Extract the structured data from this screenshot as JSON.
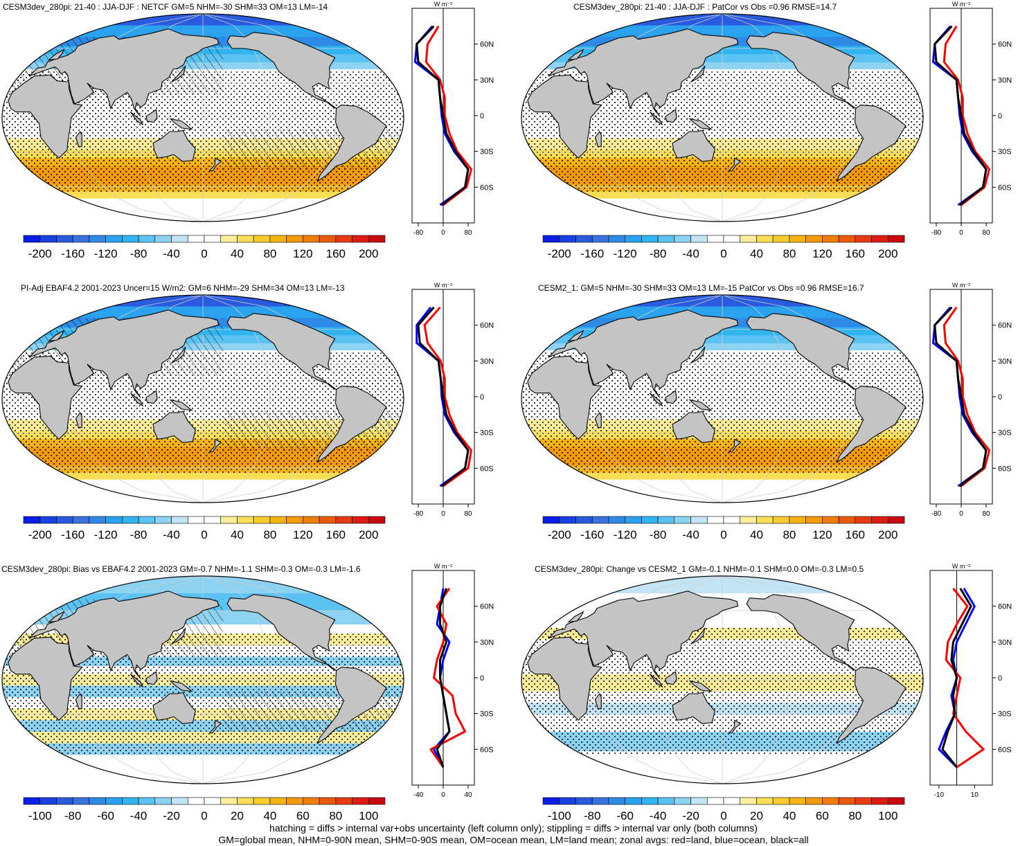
{
  "panels": [
    {
      "title": "CESM3dev_280pi: 21-40 : JJA-DJF : NETCF GM=5 NHM=-30 SHM=33 OM=13 LM=-14",
      "kind": "abs",
      "hatch": true
    },
    {
      "title": "CESM3dev_280pi: 21-40 : JJA-DJF : PatCor vs Obs =0.96 RMSE=14.7",
      "kind": "abs",
      "hatch": false
    },
    {
      "title": "PI-Adj EBAF4.2 2001-2023 Uncer=15 W/m2: GM=6 NHM=-29 SHM=34 OM=13 LM=-13",
      "kind": "abs",
      "hatch": true
    },
    {
      "title": "CESM2_1: GM=5 NHM=-30 SHM=33 OM=13 LM=-15 PatCor vs Obs =0.96 RMSE=16.7",
      "kind": "abs",
      "hatch": false
    },
    {
      "title": "CESM3dev_280pi: Bias vs EBAF4.2 2001-2023 GM=-0.7 NHM=-1.1 SHM=-0.3 OM=-0.3 LM=-1.6",
      "kind": "bias",
      "hatch": true
    },
    {
      "title": "CESM3dev_280pi: Change vs CESM2_1 GM=-0.1 NHM=-0.1 SHM=0.0 OM=-0.3 LM=0.5",
      "kind": "change",
      "hatch": false
    }
  ],
  "zonal": {
    "unit_label": "W m⁻²",
    "lat_labels": [
      "60N",
      "30N",
      "0",
      "30S",
      "60S"
    ],
    "xticks_abs": [
      "-80",
      "0",
      "80"
    ],
    "xticks_bias": [
      "-40",
      "0",
      "40"
    ],
    "xticks_change": [
      "-10",
      "10"
    ]
  },
  "colorbars": {
    "abs_labels": [
      "-200",
      "-160",
      "-120",
      "-80",
      "-40",
      "0",
      "40",
      "80",
      "120",
      "160",
      "200"
    ],
    "diff_labels": [
      "-100",
      "-80",
      "-60",
      "-40",
      "-20",
      "0",
      "20",
      "40",
      "60",
      "80",
      "100"
    ],
    "colors": [
      "#0b1ee8",
      "#1940e0",
      "#2a5bde",
      "#3a72e0",
      "#2f8ae6",
      "#2aa2ee",
      "#32b4f0",
      "#5cc2f2",
      "#8ed2f2",
      "#c2e4f4",
      "#ffffff",
      "#ffffff",
      "#fbee9a",
      "#f8df55",
      "#f8cc2a",
      "#f6b414",
      "#f39a0c",
      "#ef7e0a",
      "#eb5a0c",
      "#e63a12",
      "#de1c16",
      "#c80a10"
    ]
  },
  "footer": {
    "line1": "hatching = diffs > internal var+obs uncertainty (left column only); stippling = diffs > internal var only (both columns)",
    "line2": "GM=global mean, NHM=0-90N mean, SHM=0-90S mean, OM=ocean mean, LM=land mean; zonal avgs: red=land, blue=ocean, black=all"
  },
  "colors": {
    "land": "#c4c4c4",
    "land_line": "#ffffff",
    "grid": "#cfcfcf",
    "zonal_land": "#ff0000",
    "zonal_ocean": "#0000ff",
    "zonal_all": "#000000"
  },
  "chart_data": [
    {
      "type": "heatmap",
      "panel": "a",
      "projection": "Robinson",
      "units": "W m-2",
      "zonal_mean_lat": [
        75,
        60,
        45,
        30,
        15,
        0,
        -15,
        -30,
        -45,
        -60,
        -75
      ],
      "zonal_mean_all": [
        -30,
        -85,
        -80,
        -15,
        -10,
        0,
        10,
        40,
        80,
        70,
        -5
      ],
      "zonal_mean_land": [
        -15,
        -50,
        -55,
        -10,
        5,
        5,
        20,
        45,
        90,
        75,
        0
      ],
      "zonal_mean_ocean": [
        -35,
        -85,
        -90,
        -15,
        -10,
        -5,
        5,
        35,
        80,
        70,
        -10
      ],
      "xlim": [
        -100,
        100
      ],
      "ylim": [
        -90,
        90
      ]
    },
    {
      "type": "heatmap",
      "panel": "b",
      "projection": "Robinson",
      "units": "W m-2",
      "zonal_mean_lat": [
        75,
        60,
        45,
        30,
        15,
        0,
        -15,
        -30,
        -45,
        -60,
        -75
      ],
      "zonal_mean_all": [
        -30,
        -85,
        -80,
        -15,
        -10,
        0,
        10,
        40,
        80,
        70,
        -5
      ],
      "zonal_mean_land": [
        -15,
        -50,
        -55,
        -10,
        5,
        5,
        20,
        45,
        90,
        75,
        0
      ],
      "zonal_mean_ocean": [
        -35,
        -85,
        -90,
        -15,
        -10,
        -5,
        5,
        35,
        80,
        70,
        -10
      ],
      "xlim": [
        -100,
        100
      ],
      "ylim": [
        -90,
        90
      ]
    },
    {
      "type": "heatmap",
      "panel": "c",
      "projection": "Robinson",
      "units": "W m-2",
      "zonal_mean_lat": [
        75,
        60,
        45,
        30,
        15,
        0,
        -15,
        -30,
        -45,
        -60,
        -75
      ],
      "zonal_mean_all": [
        -30,
        -80,
        -75,
        -15,
        -8,
        0,
        10,
        40,
        80,
        70,
        -5
      ],
      "zonal_mean_land": [
        -10,
        -60,
        -50,
        -8,
        5,
        5,
        20,
        45,
        90,
        80,
        0
      ],
      "zonal_mean_ocean": [
        -40,
        -85,
        -85,
        -15,
        -8,
        -5,
        5,
        35,
        80,
        70,
        -10
      ],
      "xlim": [
        -100,
        100
      ],
      "ylim": [
        -90,
        90
      ]
    },
    {
      "type": "heatmap",
      "panel": "d",
      "projection": "Robinson",
      "units": "W m-2",
      "zonal_mean_lat": [
        75,
        60,
        45,
        30,
        15,
        0,
        -15,
        -30,
        -45,
        -60,
        -75
      ],
      "zonal_mean_all": [
        -30,
        -85,
        -80,
        -15,
        -10,
        0,
        10,
        40,
        80,
        70,
        -5
      ],
      "zonal_mean_land": [
        -15,
        -55,
        -50,
        -10,
        5,
        5,
        20,
        45,
        90,
        75,
        0
      ],
      "zonal_mean_ocean": [
        -35,
        -85,
        -90,
        -15,
        -10,
        -5,
        5,
        35,
        80,
        70,
        -10
      ],
      "xlim": [
        -100,
        100
      ],
      "ylim": [
        -90,
        90
      ]
    },
    {
      "type": "heatmap",
      "panel": "e",
      "projection": "Robinson",
      "units": "W m-2",
      "zonal_mean_lat": [
        75,
        60,
        45,
        30,
        15,
        0,
        -15,
        -30,
        -45,
        -60,
        -75
      ],
      "zonal_mean_all": [
        5,
        -5,
        -5,
        5,
        -5,
        -5,
        0,
        5,
        10,
        -10,
        0
      ],
      "zonal_mean_land": [
        10,
        -10,
        5,
        0,
        -10,
        -15,
        15,
        20,
        35,
        -20,
        0
      ],
      "zonal_mean_ocean": [
        0,
        -5,
        -10,
        10,
        0,
        -5,
        0,
        5,
        10,
        -15,
        0
      ],
      "xlim": [
        -50,
        50
      ],
      "ylim": [
        -90,
        90
      ]
    },
    {
      "type": "heatmap",
      "panel": "f",
      "projection": "Robinson",
      "units": "W m-2",
      "zonal_mean_lat": [
        75,
        60,
        45,
        30,
        15,
        0,
        -15,
        -30,
        -45,
        -60,
        -75
      ],
      "zonal_mean_all": [
        2,
        8,
        3,
        -2,
        -3,
        0,
        -2,
        -1,
        -5,
        -8,
        0
      ],
      "zonal_mean_land": [
        -2,
        6,
        0,
        -5,
        -6,
        2,
        0,
        -2,
        5,
        15,
        0
      ],
      "zonal_mean_ocean": [
        4,
        10,
        5,
        0,
        -2,
        0,
        -3,
        -1,
        -6,
        -10,
        0
      ],
      "xlim": [
        -15,
        20
      ],
      "ylim": [
        -90,
        90
      ]
    }
  ]
}
